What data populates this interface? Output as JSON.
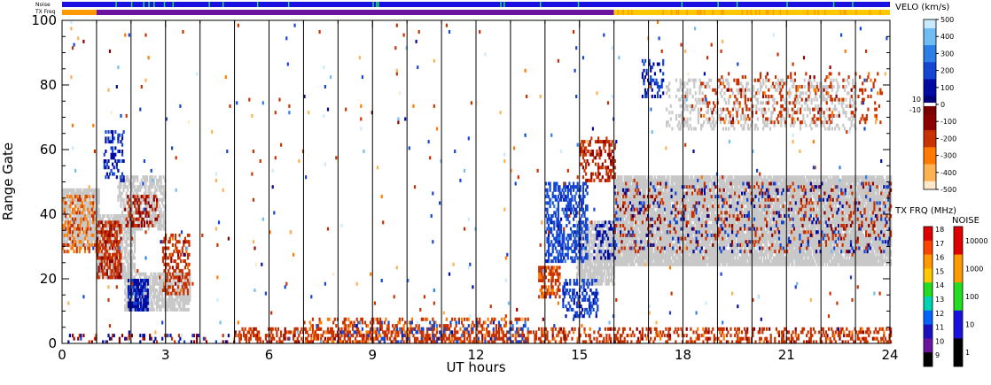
{
  "chart_data": {
    "type": "heatmap",
    "title": "",
    "xlabel": "UT hours",
    "ylabel": "Range Gate",
    "xlim": [
      0,
      24
    ],
    "ylim": [
      0,
      100
    ],
    "x_ticks": [
      0,
      3,
      6,
      9,
      12,
      15,
      18,
      21,
      24
    ],
    "y_ticks": [
      0,
      20,
      40,
      60,
      80,
      100
    ],
    "hour_gridlines": [
      1,
      2,
      3,
      4,
      5,
      6,
      7,
      8,
      9,
      10,
      11,
      12,
      13,
      14,
      15,
      16,
      17,
      18,
      19,
      20,
      21,
      22,
      23
    ],
    "status_bars": {
      "noise_label": "Noise",
      "txfreq_label": "TX Freq",
      "noise_color": "#1a10e0",
      "noise_flag_color": "#22dd66",
      "txfreq_segments": [
        {
          "start": 0,
          "end": 1,
          "color": "#ff9900"
        },
        {
          "start": 1,
          "end": 16,
          "color": "#6a14a0"
        },
        {
          "start": 16,
          "end": 24,
          "color": "#ffc800"
        }
      ]
    },
    "ground_scatter_color": "#c8c8c8",
    "regions": [
      {
        "kind": "ground",
        "t0": 0.0,
        "t1": 1.05,
        "g0": 30,
        "g1": 48,
        "density": 0.85
      },
      {
        "kind": "ground",
        "t0": 1.0,
        "t1": 2.1,
        "g0": 20,
        "g1": 40,
        "density": 0.7
      },
      {
        "kind": "ground",
        "t0": 1.6,
        "t1": 3.0,
        "g0": 35,
        "g1": 52,
        "density": 0.6
      },
      {
        "kind": "ground",
        "t0": 1.8,
        "t1": 3.7,
        "g0": 10,
        "g1": 22,
        "density": 0.75
      },
      {
        "kind": "ground",
        "t0": 14.9,
        "t1": 16.0,
        "g0": 18,
        "g1": 38,
        "density": 0.8
      },
      {
        "kind": "ground",
        "t0": 16.0,
        "t1": 24.0,
        "g0": 24,
        "g1": 52,
        "density": 0.9
      },
      {
        "kind": "ground",
        "t0": 17.5,
        "t1": 23.0,
        "g0": 66,
        "g1": 82,
        "density": 0.25
      },
      {
        "kind": "vel",
        "t0": 0.0,
        "t1": 1.0,
        "g0": 28,
        "g1": 46,
        "density": 0.3,
        "velocity": -250
      },
      {
        "kind": "vel",
        "t0": 1.0,
        "t1": 1.7,
        "g0": 20,
        "g1": 38,
        "density": 0.6,
        "velocity": -180
      },
      {
        "kind": "vel",
        "t0": 1.2,
        "t1": 1.8,
        "g0": 50,
        "g1": 66,
        "density": 0.35,
        "velocity": 150
      },
      {
        "kind": "vel",
        "t0": 1.9,
        "t1": 2.5,
        "g0": 10,
        "g1": 20,
        "density": 0.7,
        "velocity": 120
      },
      {
        "kind": "vel",
        "t0": 2.9,
        "t1": 3.7,
        "g0": 15,
        "g1": 34,
        "density": 0.35,
        "velocity": -200
      },
      {
        "kind": "vel",
        "t0": 1.8,
        "t1": 2.8,
        "g0": 36,
        "g1": 46,
        "density": 0.3,
        "velocity": -150
      },
      {
        "kind": "vel",
        "t0": 14.0,
        "t1": 15.2,
        "g0": 25,
        "g1": 50,
        "density": 0.45,
        "velocity": 200
      },
      {
        "kind": "vel",
        "t0": 14.5,
        "t1": 15.5,
        "g0": 8,
        "g1": 20,
        "density": 0.45,
        "velocity": 180
      },
      {
        "kind": "vel",
        "t0": 13.8,
        "t1": 14.4,
        "g0": 14,
        "g1": 24,
        "density": 0.6,
        "velocity": -220
      },
      {
        "kind": "vel",
        "t0": 15.0,
        "t1": 16.0,
        "g0": 50,
        "g1": 64,
        "density": 0.35,
        "velocity": -180
      },
      {
        "kind": "vel",
        "t0": 15.4,
        "t1": 16.0,
        "g0": 26,
        "g1": 38,
        "density": 0.3,
        "velocity": 120
      },
      {
        "kind": "vel",
        "t0": 16.0,
        "t1": 24.0,
        "g0": 28,
        "g1": 50,
        "density": 0.1,
        "velocity": -180
      },
      {
        "kind": "vel",
        "t0": 16.0,
        "t1": 24.0,
        "g0": 28,
        "g1": 50,
        "density": 0.06,
        "velocity": 150
      },
      {
        "kind": "vel",
        "t0": 18.5,
        "t1": 23.8,
        "g0": 68,
        "g1": 84,
        "density": 0.12,
        "velocity": -200
      },
      {
        "kind": "vel",
        "t0": 16.8,
        "t1": 17.4,
        "g0": 76,
        "g1": 88,
        "density": 0.3,
        "velocity": 150
      },
      {
        "kind": "vel",
        "t0": 5.0,
        "t1": 24.0,
        "g0": 0,
        "g1": 5,
        "density": 0.35,
        "velocity": -200
      },
      {
        "kind": "vel",
        "t0": 7.0,
        "t1": 13.5,
        "g0": 0,
        "g1": 8,
        "density": 0.25,
        "velocity": -220
      },
      {
        "kind": "vel",
        "t0": 8.0,
        "t1": 13.5,
        "g0": 0,
        "g1": 7,
        "density": 0.1,
        "velocity": 200
      },
      {
        "kind": "vel",
        "t0": 0.0,
        "t1": 5.0,
        "g0": 0,
        "g1": 3,
        "density": 0.12,
        "velocity": -150
      },
      {
        "kind": "vel",
        "t0": 0.0,
        "t1": 5.0,
        "g0": 0,
        "g1": 3,
        "density": 0.06,
        "velocity": 150
      },
      {
        "kind": "vel",
        "t0": 0.0,
        "t1": 24.0,
        "g0": 0,
        "g1": 100,
        "density": 0.0025,
        "velocity": -200
      },
      {
        "kind": "vel",
        "t0": 0.0,
        "t1": 24.0,
        "g0": 0,
        "g1": 100,
        "density": 0.0015,
        "velocity": 200
      },
      {
        "kind": "vel",
        "t0": 0.0,
        "t1": 24.0,
        "g0": 0,
        "g1": 100,
        "density": 0.0008,
        "velocity": 450
      },
      {
        "kind": "vel",
        "t0": 0.0,
        "t1": 24.0,
        "g0": 0,
        "g1": 100,
        "density": 0.0008,
        "velocity": -400
      }
    ],
    "velocity_colorbar": {
      "title": "VELO (km/s)",
      "ticks": [
        500,
        400,
        300,
        200,
        100,
        0,
        -100,
        -200,
        -300,
        -400,
        -500
      ],
      "near_zero_labels": [
        "10",
        "-10"
      ],
      "vmin": -500,
      "vmax": 500,
      "stops": [
        {
          "v": -500,
          "color": "#ffe8c8"
        },
        {
          "v": -400,
          "color": "#ffb050"
        },
        {
          "v": -300,
          "color": "#ff7a00"
        },
        {
          "v": -200,
          "color": "#c83200"
        },
        {
          "v": -100,
          "color": "#8c0000"
        },
        {
          "v": -10,
          "color": "#7a0000"
        },
        {
          "v": 10,
          "color": "#00007a"
        },
        {
          "v": 100,
          "color": "#000aa0"
        },
        {
          "v": 200,
          "color": "#1446d2"
        },
        {
          "v": 300,
          "color": "#2a7ee6"
        },
        {
          "v": 400,
          "color": "#70bcf4"
        },
        {
          "v": 500,
          "color": "#c8eaff"
        }
      ]
    },
    "txfreq_colorbar": {
      "title": "TX FRQ (MHz)",
      "labels": [
        "18",
        "17",
        "16",
        "15",
        "14",
        "13",
        "12",
        "11",
        "10",
        "9"
      ],
      "colors": [
        "#e00000",
        "#ff4400",
        "#ff9900",
        "#ffc800",
        "#22dd22",
        "#00d2b4",
        "#0064ff",
        "#1a10c0",
        "#6a14a0",
        "#000000"
      ]
    },
    "noise_colorbar": {
      "title": "NOISE",
      "labels": [
        "10000",
        "1000",
        "100",
        "10",
        "1"
      ],
      "colors": [
        "#e00000",
        "#ff9900",
        "#22dd22",
        "#1a10e0",
        "#000000"
      ]
    }
  }
}
